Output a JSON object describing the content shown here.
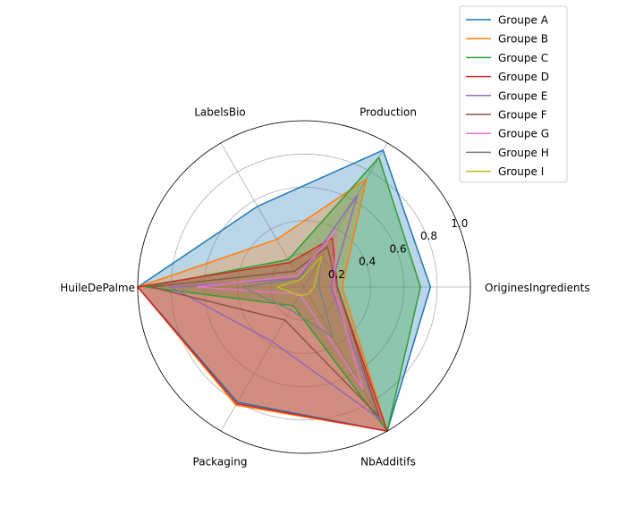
{
  "chart_data": {
    "type": "radar",
    "axes": [
      "OriginesIngredients",
      "Production",
      "LabelsBio",
      "HuileDePalme",
      "Packaging",
      "NbAdditifs"
    ],
    "rlim": [
      0,
      1.0
    ],
    "r_ticks": [
      "0.2",
      "0.4",
      "0.6",
      "0.8",
      "1.0"
    ],
    "r_tick_values": [
      0.2,
      0.4,
      0.6,
      0.8,
      1.0
    ],
    "grid": true,
    "legend_position": "top-right",
    "series": [
      {
        "name": "Groupe A",
        "color": "#1f77b4",
        "fill": true,
        "values": [
          0.76,
          0.95,
          0.56,
          1.0,
          0.8,
          1.0
        ]
      },
      {
        "name": "Groupe B",
        "color": "#ff7f0e",
        "fill": true,
        "values": [
          0.23,
          0.75,
          0.33,
          1.0,
          0.82,
          1.0
        ]
      },
      {
        "name": "Groupe C",
        "color": "#2ca02c",
        "fill": true,
        "values": [
          0.7,
          0.9,
          0.19,
          0.95,
          0.13,
          1.0
        ]
      },
      {
        "name": "Groupe D",
        "color": "#d62728",
        "fill": true,
        "values": [
          0.2,
          0.34,
          0.17,
          1.0,
          0.81,
          1.0
        ]
      },
      {
        "name": "Groupe E",
        "color": "#9467bd",
        "fill": false,
        "values": [
          0.16,
          0.64,
          0.06,
          0.8,
          0.38,
          0.92
        ]
      },
      {
        "name": "Groupe F",
        "color": "#8c564b",
        "fill": false,
        "values": [
          0.2,
          0.28,
          0.11,
          0.92,
          0.23,
          0.9
        ]
      },
      {
        "name": "Groupe G",
        "color": "#e377c2",
        "fill": false,
        "values": [
          0.18,
          0.39,
          0.08,
          0.64,
          0.05,
          0.71
        ]
      },
      {
        "name": "Groupe H",
        "color": "#7f7f7f",
        "fill": false,
        "values": [
          0.09,
          0.2,
          0.06,
          0.37,
          0.16,
          0.35
        ]
      },
      {
        "name": "Groupe I",
        "color": "#bcbd22",
        "fill": false,
        "values": [
          0.06,
          0.21,
          0.05,
          0.16,
          0.06,
          0.05
        ]
      }
    ]
  }
}
